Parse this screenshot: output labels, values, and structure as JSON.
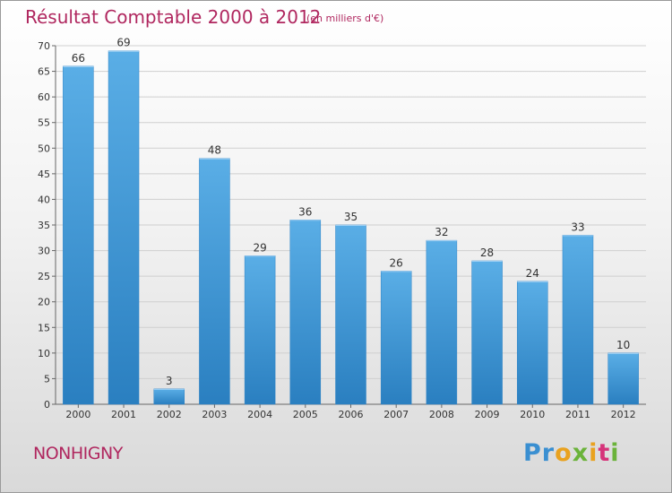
{
  "title": "Résultat Comptable 2000 à 2012",
  "subtitle": "(en milliers d'€)",
  "town": "NONHIGNY",
  "logo": {
    "text": "Proxiti",
    "colors": [
      "#3a8fd1",
      "#e9a21f",
      "#6bb33a",
      "#d6347a"
    ]
  },
  "chart_data": {
    "type": "bar",
    "title": "Résultat Comptable 2000 à 2012",
    "subtitle": "(en milliers d'€)",
    "categories": [
      "2000",
      "2001",
      "2002",
      "2003",
      "2004",
      "2005",
      "2006",
      "2007",
      "2008",
      "2009",
      "2010",
      "2011",
      "2012"
    ],
    "values": [
      66,
      69,
      3,
      48,
      29,
      36,
      35,
      26,
      32,
      28,
      24,
      33,
      10
    ],
    "ylim": [
      0,
      70
    ],
    "yticks": [
      0,
      5,
      10,
      15,
      20,
      25,
      30,
      35,
      40,
      45,
      50,
      55,
      60,
      65,
      70
    ],
    "grid": true,
    "bar_color": "#3f9ad9",
    "xlabel": "",
    "ylabel": ""
  }
}
